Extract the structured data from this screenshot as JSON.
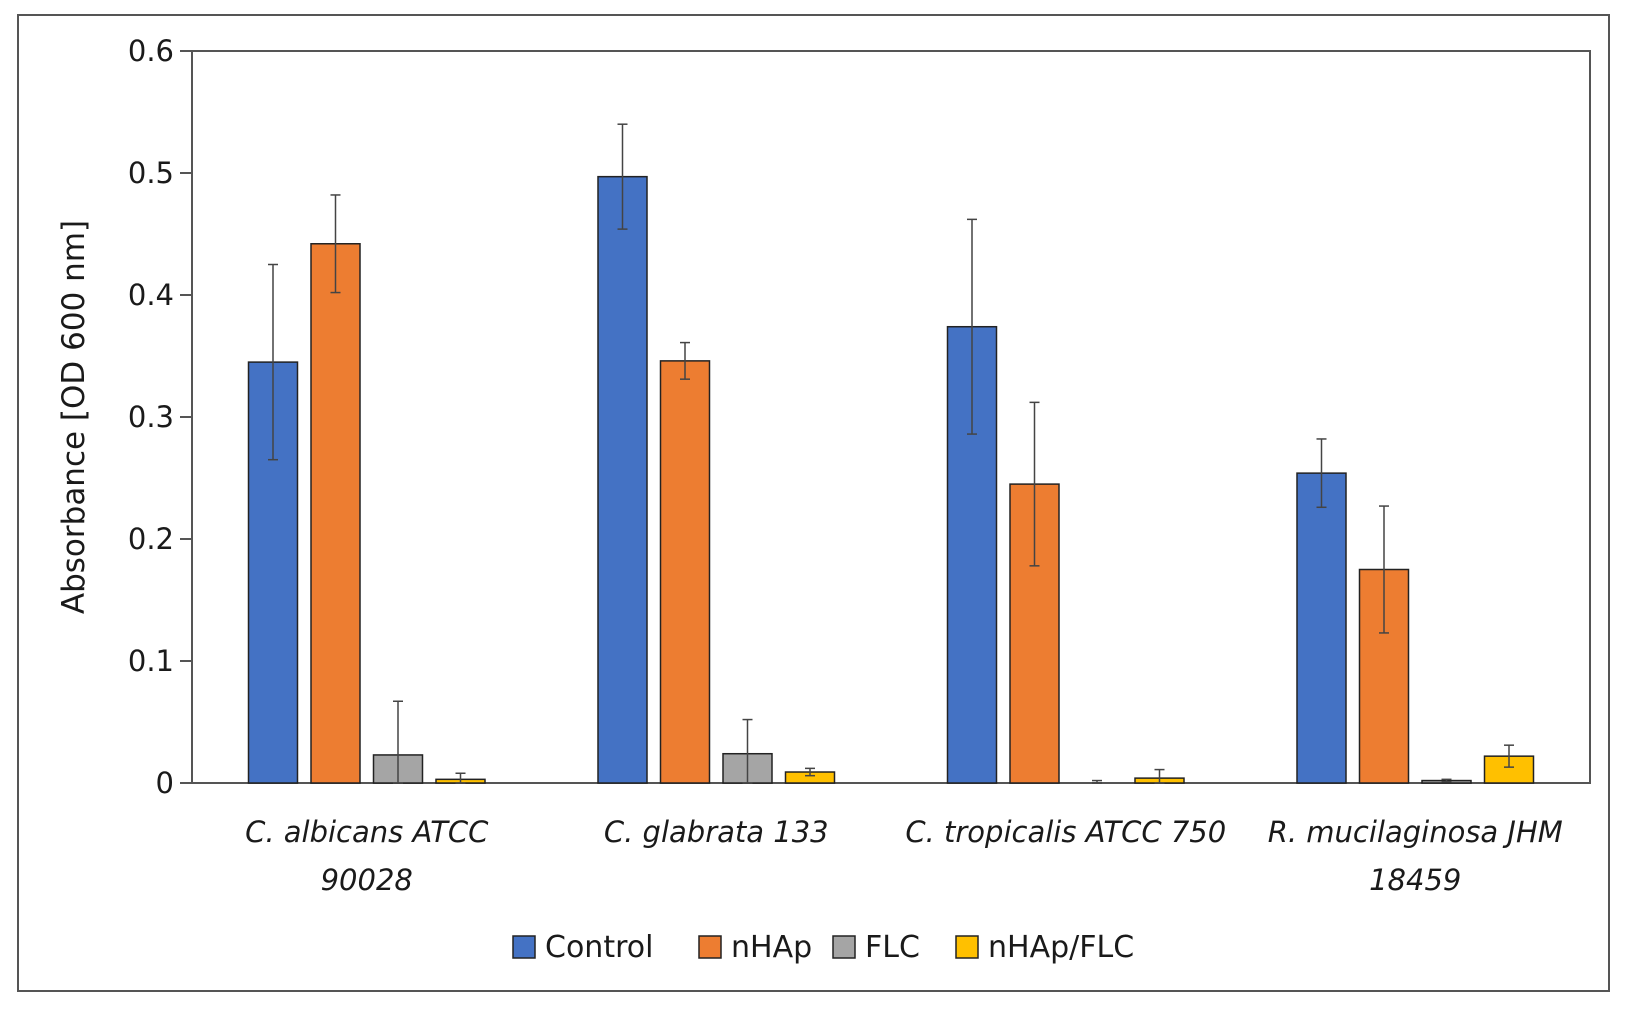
{
  "chart_data": {
    "type": "bar",
    "title": "",
    "xlabel": "",
    "ylabel": "Absorbance [OD 600 nm]",
    "ylim": [
      0,
      0.6
    ],
    "yticks": [
      "0",
      "0.1",
      "0.2",
      "0.3",
      "0.4",
      "0.5",
      "0.6"
    ],
    "grid": false,
    "legend_position": "bottom",
    "categories": [
      [
        "C. albicans ATCC",
        "90028"
      ],
      [
        "C. glabrata 133"
      ],
      [
        "C. tropicalis ATCC 750"
      ],
      [
        "R. mucilaginosa JHM",
        "18459"
      ]
    ],
    "series": [
      {
        "name": "Control",
        "color": "#4472C4",
        "values": [
          0.345,
          0.497,
          0.374,
          0.254
        ],
        "errors": [
          0.08,
          0.043,
          0.088,
          0.028
        ]
      },
      {
        "name": "nHAp",
        "color": "#ED7D31",
        "values": [
          0.442,
          0.346,
          0.245,
          0.175
        ],
        "errors": [
          0.04,
          0.015,
          0.067,
          0.052
        ]
      },
      {
        "name": "FLC",
        "color": "#A5A5A5",
        "values": [
          0.023,
          0.024,
          0.0,
          0.002
        ],
        "errors": [
          0.044,
          0.028,
          0.002,
          0.001
        ]
      },
      {
        "name": "nHAp/FLC",
        "color": "#FFC000",
        "values": [
          0.003,
          0.009,
          0.004,
          0.022
        ],
        "errors": [
          0.005,
          0.003,
          0.007,
          0.009
        ]
      }
    ]
  }
}
